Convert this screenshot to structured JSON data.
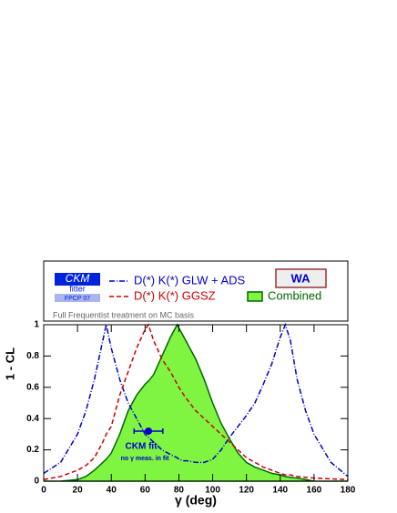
{
  "chart_data": {
    "type": "line",
    "subtitle": "Full Frequentist treatment on MC basis",
    "logo": {
      "title": "CKM",
      "subtitle": "fitter",
      "event": "FPCP 07"
    },
    "badge": "WA",
    "x_label": "γ   (deg)",
    "y_label": "1 - CL",
    "x": [
      0,
      10,
      20,
      25,
      30,
      35,
      37,
      40,
      45,
      50,
      55,
      60,
      62,
      65,
      70,
      75,
      79,
      80,
      83,
      85,
      90,
      95,
      100,
      105,
      110,
      115,
      120,
      125,
      130,
      135,
      140,
      143,
      146,
      150,
      155,
      160,
      170,
      180
    ],
    "series": [
      {
        "name": "D(*) K(*) GLW + ADS",
        "color": "#0000cc",
        "dash": "6,2,1,2",
        "values": [
          0.05,
          0.12,
          0.3,
          0.45,
          0.65,
          0.9,
          1.0,
          0.85,
          0.65,
          0.5,
          0.4,
          0.3,
          0.28,
          0.25,
          0.2,
          0.17,
          0.15,
          0.14,
          0.13,
          0.13,
          0.12,
          0.12,
          0.14,
          0.2,
          0.28,
          0.35,
          0.42,
          0.5,
          0.62,
          0.75,
          0.92,
          1.0,
          0.9,
          0.65,
          0.45,
          0.3,
          0.12,
          0.03
        ]
      },
      {
        "name": "D(*) K(*) GGSZ",
        "color": "#cc0000",
        "dash": "5,3",
        "values": [
          0.01,
          0.03,
          0.07,
          0.1,
          0.15,
          0.25,
          0.3,
          0.35,
          0.55,
          0.7,
          0.85,
          0.97,
          1.0,
          0.9,
          0.78,
          0.7,
          0.62,
          0.6,
          0.55,
          0.52,
          0.45,
          0.4,
          0.35,
          0.3,
          0.25,
          0.2,
          0.15,
          0.12,
          0.09,
          0.07,
          0.05,
          0.04,
          0.04,
          0.03,
          0.025,
          0.02,
          0.015,
          0.01
        ]
      },
      {
        "name": "Combined",
        "color": "#006600",
        "fill": "#7ff542",
        "filled": true,
        "values": [
          0,
          0,
          0.01,
          0.03,
          0.07,
          0.12,
          0.14,
          0.18,
          0.3,
          0.45,
          0.55,
          0.62,
          0.64,
          0.68,
          0.8,
          0.92,
          1.0,
          0.98,
          0.92,
          0.88,
          0.78,
          0.65,
          0.5,
          0.37,
          0.27,
          0.18,
          0.12,
          0.09,
          0.07,
          0.05,
          0.04,
          0.03,
          0.025,
          0.02,
          0.01,
          0,
          0,
          0
        ]
      }
    ],
    "point": {
      "label": "CKM fit",
      "note": "no γ meas. in fit",
      "x": 62,
      "y": 0.32,
      "xerr": 8.5,
      "color": "#0000cc"
    },
    "xlim": [
      0,
      180
    ],
    "ylim": [
      0,
      1
    ],
    "xticks": [
      0,
      20,
      40,
      60,
      80,
      100,
      120,
      140,
      160,
      180
    ],
    "yticks": [
      0,
      0.2,
      0.4,
      0.6,
      0.8,
      1
    ]
  }
}
